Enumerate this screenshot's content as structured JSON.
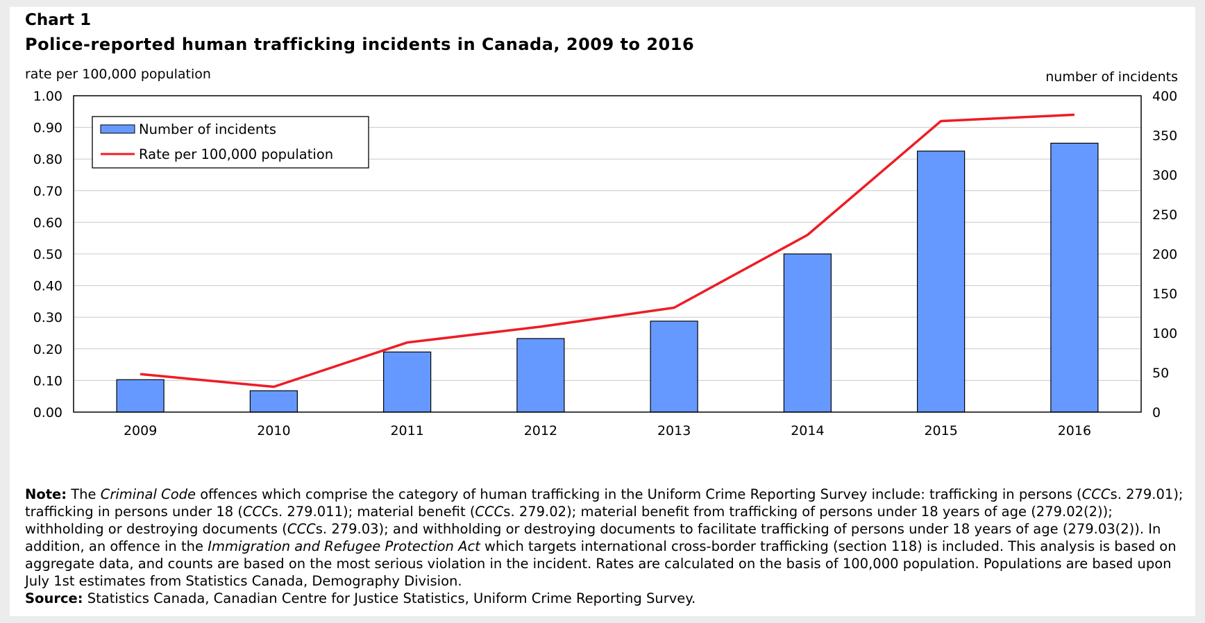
{
  "chart_number": "Chart 1",
  "chart_data": {
    "type": "bar",
    "title": "Police-reported human trafficking incidents in Canada, 2009 to 2016",
    "categories": [
      "2009",
      "2010",
      "2011",
      "2012",
      "2013",
      "2014",
      "2015",
      "2016"
    ],
    "series": [
      {
        "name": "Number of incidents",
        "type": "bar",
        "axis": "right",
        "color": "#6699ff",
        "values": [
          41,
          27,
          76,
          93,
          115,
          200,
          330,
          340
        ]
      },
      {
        "name": "Rate per 100,000 population",
        "type": "line",
        "axis": "left",
        "color": "#ee1c25",
        "values": [
          0.12,
          0.08,
          0.22,
          0.27,
          0.33,
          0.56,
          0.92,
          0.94
        ]
      }
    ],
    "ylabel_left": "rate per 100,000 population",
    "ylabel_right": "number of incidents",
    "ylim_left": [
      0,
      1
    ],
    "ylim_right": [
      0,
      400
    ],
    "yticks_left": [
      "0.00",
      "0.10",
      "0.20",
      "0.30",
      "0.40",
      "0.50",
      "0.60",
      "0.70",
      "0.80",
      "0.90",
      "1.00"
    ],
    "yticks_right": [
      "0",
      "50",
      "100",
      "150",
      "200",
      "250",
      "300",
      "350",
      "400"
    ],
    "grid": true,
    "legend_position": "top-left"
  },
  "note": {
    "label": "Note:",
    "parts": [
      {
        "t": " The "
      },
      {
        "t": "Criminal Code",
        "i": true
      },
      {
        "t": " offences which comprise the category of human trafficking in the Uniform Crime Reporting Survey include: trafficking in persons ("
      },
      {
        "t": "CCC",
        "i": true
      },
      {
        "t": "s. 279.01); trafficking in persons under 18 ("
      },
      {
        "t": "CCC",
        "i": true
      },
      {
        "t": "s. 279.011); material benefit ("
      },
      {
        "t": "CCC",
        "i": true
      },
      {
        "t": "s. 279.02); material benefit from trafficking of persons under 18 years of age (279.02(2)); withholding or destroying documents ("
      },
      {
        "t": "CCC",
        "i": true
      },
      {
        "t": "s. 279.03); and withholding or destroying documents to facilitate trafficking of persons under 18 years of age (279.03(2)). In addition, an offence in the "
      },
      {
        "t": "Immigration and Refugee Protection Act",
        "i": true
      },
      {
        "t": " which targets international cross-border trafficking (section 118) is included. This analysis is based on aggregate data, and counts are based on the most serious violation in the incident. Rates are calculated on the basis of 100,000 population. Populations are based upon July 1st estimates from Statistics Canada, Demography Division."
      }
    ]
  },
  "source": {
    "label": "Source:",
    "text": " Statistics Canada, Canadian Centre for Justice Statistics, Uniform Crime Reporting Survey."
  }
}
